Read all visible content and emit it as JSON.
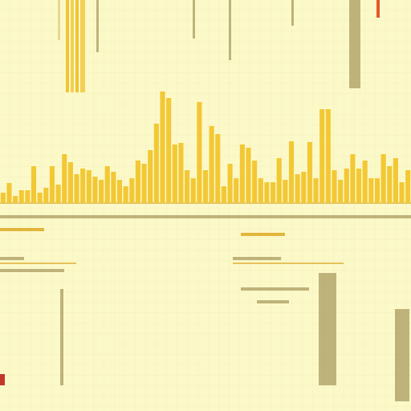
{
  "chart_data": {
    "type": "bar",
    "categories": [
      null,
      null,
      null,
      null,
      null,
      null,
      null,
      null,
      null,
      null,
      null,
      null,
      null,
      null,
      null,
      null,
      null,
      null,
      null,
      null,
      null,
      null,
      null,
      null,
      null,
      null,
      null,
      null,
      null,
      null,
      null,
      null,
      null,
      null,
      null,
      null,
      null,
      null,
      null,
      null,
      null,
      null,
      null,
      null,
      null,
      null,
      null,
      null,
      null,
      null,
      null,
      null,
      null,
      null,
      null,
      null,
      null,
      null,
      null,
      null,
      null,
      null,
      null,
      null,
      null,
      null,
      null
    ],
    "values": [
      12,
      24,
      8,
      15,
      15,
      45,
      12,
      18,
      45,
      22,
      60,
      50,
      35,
      42,
      40,
      32,
      28,
      45,
      38,
      28,
      20,
      30,
      52,
      48,
      65,
      98,
      138,
      130,
      72,
      74,
      40,
      30,
      125,
      40,
      95,
      85,
      20,
      48,
      30,
      72,
      68,
      52,
      30,
      25,
      25,
      55,
      28,
      76,
      35,
      38,
      75,
      30,
      116,
      116,
      40,
      28,
      42,
      60,
      42,
      52,
      30,
      30,
      60,
      45,
      55,
      25,
      40
    ],
    "color": "#f3c835",
    "ylim": [
      0,
      140
    ]
  }
}
